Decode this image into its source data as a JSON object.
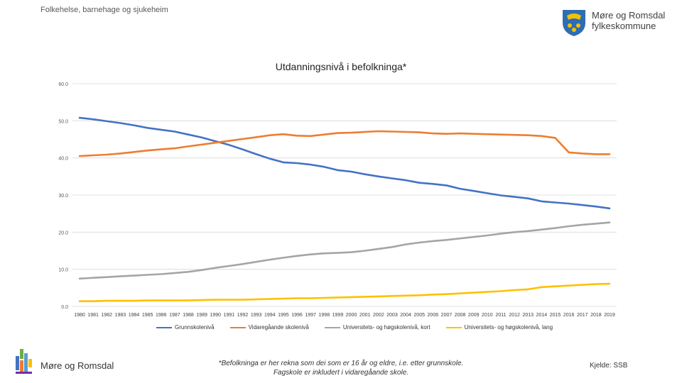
{
  "header": {
    "section_title": "Folkehelse, barnehage og sjukeheim"
  },
  "logo": {
    "line1": "Møre og Romsdal",
    "line2": "fylkeskommune"
  },
  "footer": {
    "brand": "Møre og Romsdal",
    "footnote_line1": "*Befolkninga er her rekna som dei som er 16 år og eldre, i.e. etter grunnskole.",
    "footnote_line2": "Fagskole er inkludert i vidaregåande skole.",
    "source": "Kjelde: SSB"
  },
  "colors": {
    "grunnskole": "#4472C4",
    "vidaregaande": "#ED7D31",
    "uni_kort": "#A5A5A5",
    "uni_lang": "#FFC000",
    "grid": "#D9D9D9"
  },
  "chart_data": {
    "type": "line",
    "title": "Utdanningsnivå i befolkninga*",
    "xlabel": "",
    "ylabel": "",
    "ylim": [
      0,
      60
    ],
    "yticks": [
      "0.0",
      "10.0",
      "20.0",
      "30.0",
      "40.0",
      "50.0",
      "60.0"
    ],
    "categories": [
      "1980",
      "1981",
      "1982",
      "1983",
      "1984",
      "1985",
      "1986",
      "1987",
      "1988",
      "1989",
      "1990",
      "1991",
      "1992",
      "1993",
      "1994",
      "1995",
      "1996",
      "1997",
      "1998",
      "1999",
      "2000",
      "2001",
      "2002",
      "2003",
      "2004",
      "2005",
      "2006",
      "2007",
      "2008",
      "2009",
      "2010",
      "2011",
      "2012",
      "2013",
      "2014",
      "2015",
      "2016",
      "2017",
      "2018",
      "2019"
    ],
    "series": [
      {
        "name": "Grunnskolenivå",
        "color": "#4472C4",
        "values": [
          50.8,
          50.4,
          49.9,
          49.4,
          48.8,
          48.1,
          47.6,
          47.1,
          46.3,
          45.5,
          44.5,
          43.5,
          42.3,
          41.0,
          39.8,
          38.8,
          38.6,
          38.2,
          37.6,
          36.7,
          36.3,
          35.6,
          35.0,
          34.5,
          34.0,
          33.3,
          33.0,
          32.6,
          31.7,
          31.1,
          30.5,
          29.9,
          29.5,
          29.1,
          28.3,
          28.0,
          27.7,
          27.3,
          26.9,
          26.4
        ]
      },
      {
        "name": "Vidaregåande skolenivå",
        "color": "#ED7D31",
        "values": [
          40.5,
          40.7,
          40.9,
          41.2,
          41.6,
          42.0,
          42.3,
          42.6,
          43.1,
          43.6,
          44.1,
          44.6,
          45.1,
          45.6,
          46.1,
          46.4,
          46.0,
          45.9,
          46.3,
          46.7,
          46.8,
          47.0,
          47.2,
          47.1,
          47.0,
          46.9,
          46.6,
          46.5,
          46.6,
          46.5,
          46.4,
          46.3,
          46.2,
          46.1,
          45.9,
          45.4,
          41.5,
          41.2,
          41.0,
          41.0
        ]
      },
      {
        "name": "Universitets- og høgskolenivå, kort",
        "color": "#A5A5A5",
        "values": [
          7.5,
          7.7,
          7.9,
          8.1,
          8.3,
          8.5,
          8.7,
          9.0,
          9.3,
          9.8,
          10.4,
          10.9,
          11.4,
          12.0,
          12.6,
          13.1,
          13.6,
          14.0,
          14.3,
          14.4,
          14.6,
          15.0,
          15.5,
          16.0,
          16.7,
          17.2,
          17.6,
          17.9,
          18.3,
          18.7,
          19.1,
          19.6,
          20.0,
          20.3,
          20.7,
          21.1,
          21.6,
          22.0,
          22.3,
          22.6
        ]
      },
      {
        "name": "Universitets- og høgskolenivå, lang",
        "color": "#FFC000",
        "values": [
          1.4,
          1.4,
          1.5,
          1.5,
          1.5,
          1.6,
          1.6,
          1.6,
          1.6,
          1.7,
          1.8,
          1.8,
          1.8,
          1.9,
          2.0,
          2.1,
          2.2,
          2.2,
          2.3,
          2.4,
          2.5,
          2.6,
          2.7,
          2.8,
          2.9,
          3.0,
          3.2,
          3.3,
          3.5,
          3.7,
          3.9,
          4.1,
          4.4,
          4.6,
          5.2,
          5.4,
          5.6,
          5.8,
          6.0,
          6.1
        ]
      }
    ]
  }
}
